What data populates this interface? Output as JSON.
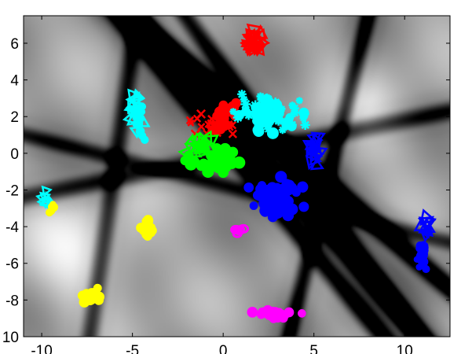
{
  "chart_data": {
    "type": "scatter",
    "title": "",
    "xlabel": "",
    "ylabel": "",
    "xlim": [
      -11.0,
      12.5
    ],
    "ylim": [
      -10.0,
      7.5
    ],
    "x_ticks": [
      "-10",
      "-5",
      "0",
      "5",
      "10"
    ],
    "y_ticks": [
      "6",
      "4",
      "2",
      "0",
      "-2",
      "-4",
      "-6",
      "-8",
      "10"
    ],
    "background": "grayscale-field",
    "grid": false,
    "legend": "none",
    "series": [
      {
        "color": "#ff0000",
        "clusters": [
          {
            "marker": "triangle",
            "cx": 1.7,
            "cy": 6.0,
            "sx": 0.35,
            "sy": 0.55,
            "n": 26,
            "size": 14,
            "rotate": true
          },
          {
            "marker": "x",
            "cx": -0.6,
            "cy": 1.6,
            "sx": 1.1,
            "sy": 0.5,
            "n": 30,
            "size": 9
          },
          {
            "marker": "blob",
            "cx": 0.1,
            "cy": 2.2,
            "sx": 0.5,
            "sy": 0.5,
            "n": 22,
            "size": 11
          }
        ]
      },
      {
        "color": "#00ffff",
        "clusters": [
          {
            "marker": "asterisk",
            "cx": 2.6,
            "cy": 2.3,
            "sx": 1.4,
            "sy": 0.7,
            "n": 45,
            "size": 11
          },
          {
            "marker": "blob",
            "cx": 2.2,
            "cy": 1.9,
            "sx": 1.3,
            "sy": 0.5,
            "n": 30,
            "size": 11
          },
          {
            "marker": "triangle",
            "cx": -4.8,
            "cy": 2.6,
            "sx": 0.2,
            "sy": 0.8,
            "n": 16,
            "size": 13,
            "rotate": true
          },
          {
            "marker": "blob",
            "cx": -4.6,
            "cy": 1.6,
            "sx": 0.2,
            "sy": 0.7,
            "n": 20,
            "size": 8
          },
          {
            "marker": "triangle",
            "cx": -9.8,
            "cy": -2.5,
            "sx": 0.15,
            "sy": 0.25,
            "n": 8,
            "size": 11,
            "rotate": true
          }
        ]
      },
      {
        "color": "#00ff00",
        "clusters": [
          {
            "marker": "blob",
            "cx": -0.5,
            "cy": -0.3,
            "sx": 1.1,
            "sy": 0.5,
            "n": 34,
            "size": 12
          },
          {
            "marker": "triangle",
            "cx": -1.3,
            "cy": 0.4,
            "sx": 0.7,
            "sy": 0.4,
            "n": 16,
            "size": 12,
            "rotate": true
          }
        ]
      },
      {
        "color": "#0000ff",
        "clusters": [
          {
            "marker": "blob",
            "cx": 3.0,
            "cy": -2.4,
            "sx": 1.0,
            "sy": 0.8,
            "n": 55,
            "size": 11
          },
          {
            "marker": "triangle",
            "cx": 5.1,
            "cy": 0.5,
            "sx": 0.25,
            "sy": 0.8,
            "n": 16,
            "size": 13,
            "rotate": true
          },
          {
            "marker": "triangle",
            "cx": 11.2,
            "cy": -4.0,
            "sx": 0.15,
            "sy": 0.6,
            "n": 8,
            "size": 14,
            "rotate": true
          },
          {
            "marker": "blob",
            "cx": 11.0,
            "cy": -5.5,
            "sx": 0.2,
            "sy": 0.6,
            "n": 26,
            "size": 8
          }
        ]
      },
      {
        "color": "#ffff00",
        "clusters": [
          {
            "marker": "blob",
            "cx": -4.2,
            "cy": -4.0,
            "sx": 0.25,
            "sy": 0.35,
            "n": 22,
            "size": 9
          },
          {
            "marker": "blob",
            "cx": -7.2,
            "cy": -7.8,
            "sx": 0.35,
            "sy": 0.25,
            "n": 18,
            "size": 10
          },
          {
            "marker": "blob",
            "cx": -9.5,
            "cy": -3.1,
            "sx": 0.15,
            "sy": 0.25,
            "n": 7,
            "size": 8
          }
        ]
      },
      {
        "color": "#ff00ff",
        "clusters": [
          {
            "marker": "blob",
            "cx": 3.0,
            "cy": -8.8,
            "sx": 0.7,
            "sy": 0.18,
            "n": 28,
            "size": 10
          },
          {
            "marker": "ring",
            "cx": 0.9,
            "cy": -4.2,
            "sx": 0.2,
            "sy": 0.1,
            "n": 6,
            "size": 10
          }
        ]
      }
    ]
  }
}
